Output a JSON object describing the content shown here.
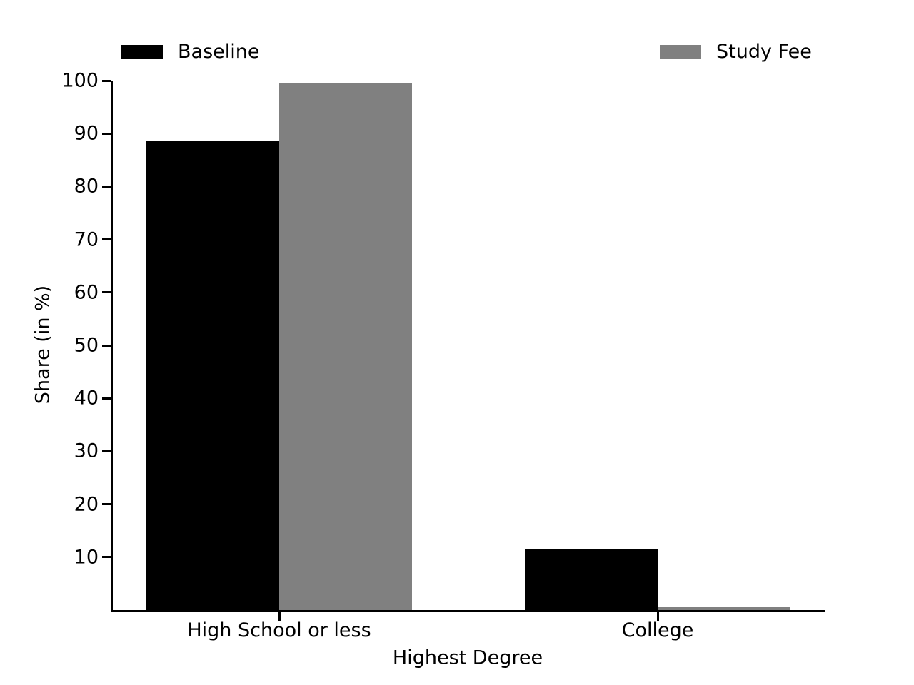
{
  "chart_data": {
    "type": "bar",
    "title": "",
    "categories": [
      "High School or less",
      "College"
    ],
    "series": [
      {
        "name": "Baseline",
        "color": "#000000",
        "values": [
          88.5,
          11.4
        ]
      },
      {
        "name": "Study Fee",
        "color": "#808080",
        "values": [
          99.5,
          0.5
        ]
      }
    ],
    "xlabel": "Highest Degree",
    "ylabel": "Share (in %)",
    "ylim": [
      0,
      100
    ],
    "yticks": [
      10,
      20,
      30,
      40,
      50,
      60,
      70,
      80,
      90,
      100
    ],
    "grid": false,
    "legend_position": "top",
    "background_color": "#ffffff",
    "axis_color": "#000000"
  }
}
